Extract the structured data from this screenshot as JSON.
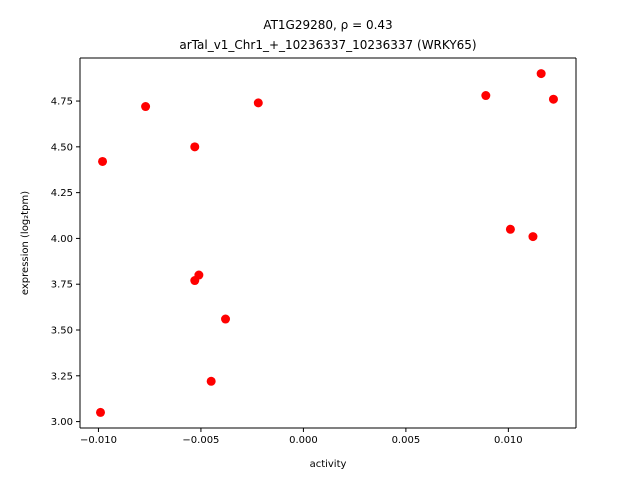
{
  "chart_data": {
    "type": "scatter",
    "title_line1": "AT1G29280, ρ = 0.43",
    "title_line2": "arTal_v1_Chr1_+_10236337_10236337 (WRKY65)",
    "xlabel": "activity",
    "ylabel": "expression (log₂tpm)",
    "xlim": [
      -0.0109,
      0.0133
    ],
    "ylim": [
      2.965,
      4.985
    ],
    "x_ticks": [
      {
        "value": -0.01,
        "label": "−0.010"
      },
      {
        "value": -0.005,
        "label": "−0.005"
      },
      {
        "value": 0.0,
        "label": "0.000"
      },
      {
        "value": 0.005,
        "label": "0.005"
      },
      {
        "value": 0.01,
        "label": "0.010"
      }
    ],
    "y_ticks": [
      {
        "value": 3.0,
        "label": "3.00"
      },
      {
        "value": 3.25,
        "label": "3.25"
      },
      {
        "value": 3.5,
        "label": "3.50"
      },
      {
        "value": 3.75,
        "label": "3.75"
      },
      {
        "value": 4.0,
        "label": "4.00"
      },
      {
        "value": 4.25,
        "label": "4.25"
      },
      {
        "value": 4.5,
        "label": "4.50"
      },
      {
        "value": 4.75,
        "label": "4.75"
      }
    ],
    "grid": false,
    "marker_color": "#ff0000",
    "points": [
      {
        "x": -0.0099,
        "y": 3.05
      },
      {
        "x": -0.0098,
        "y": 4.42
      },
      {
        "x": -0.0077,
        "y": 4.72
      },
      {
        "x": -0.0053,
        "y": 4.5
      },
      {
        "x": -0.0053,
        "y": 3.77
      },
      {
        "x": -0.0051,
        "y": 3.8
      },
      {
        "x": -0.0045,
        "y": 3.22
      },
      {
        "x": -0.0038,
        "y": 3.56
      },
      {
        "x": -0.0022,
        "y": 4.74
      },
      {
        "x": 0.0089,
        "y": 4.78
      },
      {
        "x": 0.0101,
        "y": 4.05
      },
      {
        "x": 0.0112,
        "y": 4.01
      },
      {
        "x": 0.0116,
        "y": 4.9
      },
      {
        "x": 0.0122,
        "y": 4.76
      }
    ]
  }
}
